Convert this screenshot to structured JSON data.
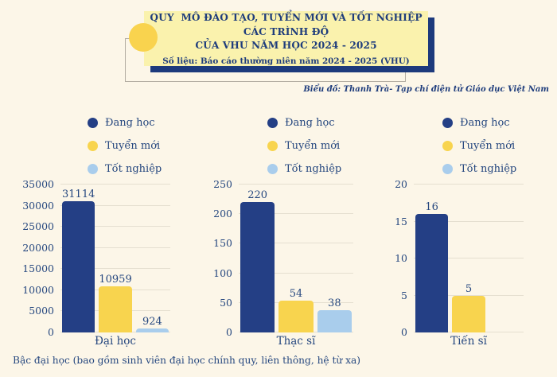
{
  "header": {
    "title_line1": "QUY  MÔ ĐÀO TẠO, TUYỂN MỚI VÀ TỐT NGHIỆP CÁC TRÌNH ĐỘ",
    "title_line2": "CỦA VHU NĂM HỌC 2024 - 2025",
    "subtitle": "Số liệu: Báo cáo thường niên năm 2024 - 2025 (VHU)"
  },
  "credit": "Biểu đồ: Thanh Trà- Tạp chí điện tử Giáo dục Việt Nam",
  "footnote": "Bậc đại học (bao gồm sinh viên đại học chính quy, liên thông, hệ từ xa)",
  "legend": {
    "items": [
      {
        "label": "Đang học",
        "color": "#243f85"
      },
      {
        "label": "Tuyển mới",
        "color": "#f8d44e"
      },
      {
        "label": "Tốt nghiệp",
        "color": "#a9cdec"
      }
    ]
  },
  "colors": {
    "background": "#fcf6e8",
    "title_box": "#faf2ad",
    "accent_navy": "#1d3a7c",
    "accent_yellow": "#f9d34e",
    "gridline": "#e5dfd0",
    "text": "#25477f",
    "frame_border": "#b3ada2"
  },
  "chart_data": [
    {
      "type": "bar",
      "category": "Đại học",
      "series": [
        {
          "name": "Đang học",
          "value": 31114,
          "color": "#243f85"
        },
        {
          "name": "Tuyển mới",
          "value": 10959,
          "color": "#f8d44e"
        },
        {
          "name": "Tốt nghiệp",
          "value": 924,
          "color": "#a9cdec"
        }
      ],
      "ylim": [
        0,
        35000
      ],
      "yticks": [
        0,
        5000,
        10000,
        15000,
        20000,
        25000,
        30000,
        35000
      ],
      "grid": true,
      "legend_position": "top"
    },
    {
      "type": "bar",
      "category": "Thạc sĩ",
      "series": [
        {
          "name": "Đang học",
          "value": 220,
          "color": "#243f85"
        },
        {
          "name": "Tuyển mới",
          "value": 54,
          "color": "#f8d44e"
        },
        {
          "name": "Tốt nghiệp",
          "value": 38,
          "color": "#a9cdec"
        }
      ],
      "ylim": [
        0,
        250
      ],
      "yticks": [
        0,
        50,
        100,
        150,
        200,
        250
      ],
      "grid": true,
      "legend_position": "top"
    },
    {
      "type": "bar",
      "category": "Tiến sĩ",
      "series": [
        {
          "name": "Đang học",
          "value": 16,
          "color": "#243f85"
        },
        {
          "name": "Tuyển mới",
          "value": 5,
          "color": "#f8d44e"
        },
        {
          "name": "Tốt nghiệp",
          "value": 0,
          "color": "#a9cdec"
        }
      ],
      "ylim": [
        0,
        20
      ],
      "yticks": [
        0,
        5,
        10,
        15,
        20
      ],
      "grid": true,
      "legend_position": "top"
    }
  ]
}
